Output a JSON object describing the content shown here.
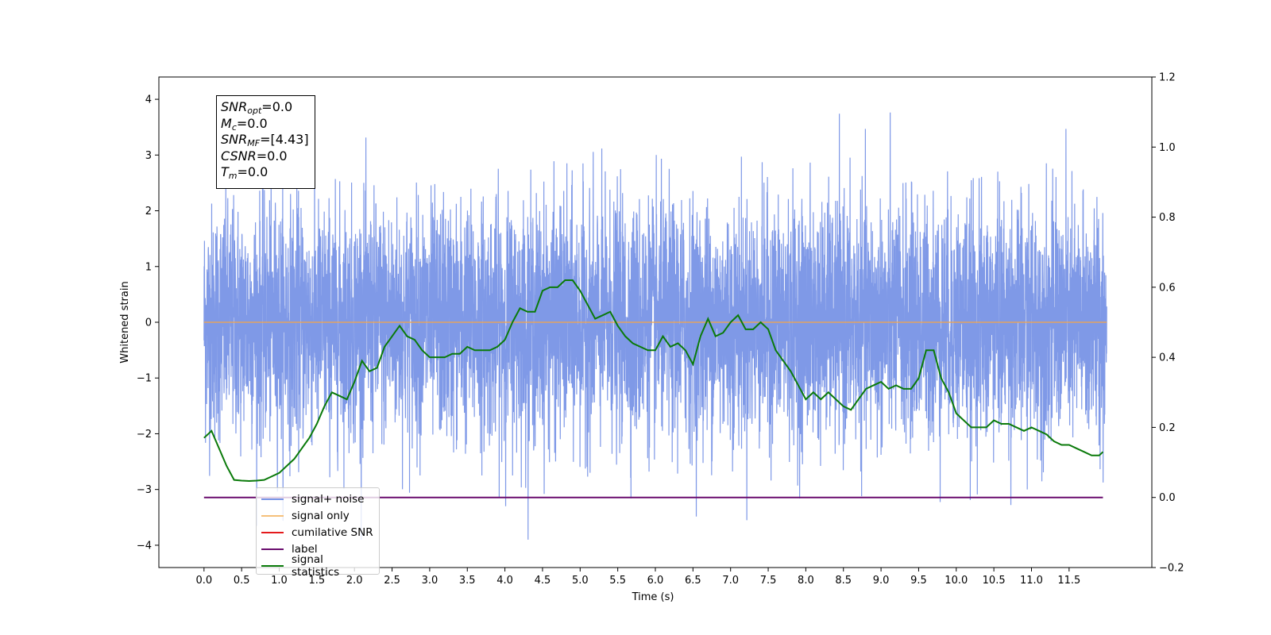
{
  "chart_data": {
    "type": "line",
    "title": "",
    "xlabel": "Time (s)",
    "ylabel": "Whitened strain",
    "ylabel_right": "",
    "xlim": [
      -0.6,
      12.6
    ],
    "ylim": [
      -4.4,
      4.4
    ],
    "ylim_right": [
      -0.2,
      1.2
    ],
    "x_ticks": [
      "0.0",
      "0.5",
      "1.0",
      "1.5",
      "2.0",
      "2.5",
      "3.0",
      "3.5",
      "4.0",
      "4.5",
      "5.0",
      "5.5",
      "6.0",
      "6.5",
      "7.0",
      "7.5",
      "8.0",
      "8.5",
      "9.0",
      "9.5",
      "10.0",
      "10.5",
      "11.0",
      "11.5"
    ],
    "y_ticks": [
      "4",
      "3",
      "2",
      "1",
      "0",
      "−1",
      "−2",
      "−3",
      "−4"
    ],
    "y_ticks_right": [
      "1.2",
      "1.0",
      "0.8",
      "0.6",
      "0.4",
      "0.2",
      "0.0",
      "−0.2"
    ],
    "grid": false,
    "legend_position": "lower-left",
    "stats_box": {
      "snr_opt": "=0.0",
      "mc": "=0.0",
      "snr_mf": "=[4.43]",
      "csnr": "=0.0",
      "tm": "=0.0"
    },
    "series": [
      {
        "name": "signal+ noise",
        "color": "#7893e6",
        "axis": "left",
        "x_range": [
          0.0,
          12.0
        ],
        "mean": 0.0,
        "approx_min": -3.9,
        "approx_max": 4.1,
        "note": "dense noise trace"
      },
      {
        "name": "signal only",
        "color": "#f5a54a",
        "axis": "left",
        "x": [
          0.0,
          12.0
        ],
        "y": [
          0.0,
          0.0
        ]
      },
      {
        "name": "cumilative SNR",
        "color": "#e41a1c",
        "axis": "left",
        "x": [],
        "y": []
      },
      {
        "name": "label",
        "color": "#6a0d6e",
        "axis": "right",
        "x": [
          0.0,
          11.95
        ],
        "y": [
          0.0,
          0.0
        ]
      },
      {
        "name": "signal statistics",
        "color": "#0a7a0a",
        "axis": "right",
        "x": [
          0.0,
          0.1,
          0.2,
          0.3,
          0.4,
          0.5,
          0.6,
          0.7,
          0.8,
          0.9,
          1.0,
          1.1,
          1.2,
          1.3,
          1.4,
          1.5,
          1.6,
          1.7,
          1.8,
          1.9,
          2.0,
          2.1,
          2.2,
          2.3,
          2.4,
          2.5,
          2.6,
          2.7,
          2.8,
          2.9,
          3.0,
          3.1,
          3.2,
          3.3,
          3.4,
          3.5,
          3.6,
          3.7,
          3.8,
          3.9,
          4.0,
          4.1,
          4.2,
          4.3,
          4.4,
          4.5,
          4.6,
          4.7,
          4.8,
          4.9,
          5.0,
          5.1,
          5.2,
          5.3,
          5.4,
          5.5,
          5.6,
          5.7,
          5.8,
          5.9,
          6.0,
          6.1,
          6.2,
          6.3,
          6.4,
          6.5,
          6.6,
          6.7,
          6.8,
          6.9,
          7.0,
          7.1,
          7.2,
          7.3,
          7.4,
          7.5,
          7.6,
          7.7,
          7.8,
          7.9,
          8.0,
          8.1,
          8.2,
          8.3,
          8.4,
          8.5,
          8.6,
          8.7,
          8.8,
          8.9,
          9.0,
          9.1,
          9.2,
          9.3,
          9.4,
          9.5,
          9.6,
          9.7,
          9.8,
          9.9,
          10.0,
          10.1,
          10.2,
          10.3,
          10.4,
          10.5,
          10.6,
          10.7,
          10.8,
          10.9,
          11.0,
          11.1,
          11.2,
          11.3,
          11.4,
          11.5,
          11.6,
          11.7,
          11.8,
          11.9,
          11.95
        ],
        "y": [
          0.17,
          0.19,
          0.14,
          0.09,
          0.05,
          0.048,
          0.047,
          0.048,
          0.05,
          0.06,
          0.07,
          0.09,
          0.11,
          0.14,
          0.17,
          0.21,
          0.26,
          0.3,
          0.29,
          0.28,
          0.33,
          0.39,
          0.36,
          0.37,
          0.43,
          0.46,
          0.49,
          0.46,
          0.45,
          0.42,
          0.4,
          0.4,
          0.4,
          0.41,
          0.41,
          0.43,
          0.42,
          0.42,
          0.42,
          0.43,
          0.45,
          0.5,
          0.54,
          0.53,
          0.53,
          0.59,
          0.6,
          0.6,
          0.62,
          0.62,
          0.59,
          0.55,
          0.51,
          0.52,
          0.53,
          0.49,
          0.46,
          0.44,
          0.43,
          0.42,
          0.42,
          0.46,
          0.43,
          0.44,
          0.42,
          0.38,
          0.46,
          0.51,
          0.46,
          0.47,
          0.5,
          0.52,
          0.48,
          0.48,
          0.5,
          0.48,
          0.42,
          0.39,
          0.36,
          0.32,
          0.28,
          0.3,
          0.28,
          0.3,
          0.28,
          0.26,
          0.25,
          0.28,
          0.31,
          0.32,
          0.33,
          0.31,
          0.32,
          0.31,
          0.31,
          0.34,
          0.42,
          0.42,
          0.34,
          0.3,
          0.24,
          0.22,
          0.2,
          0.2,
          0.2,
          0.22,
          0.21,
          0.21,
          0.2,
          0.19,
          0.2,
          0.19,
          0.18,
          0.16,
          0.15,
          0.15,
          0.14,
          0.13,
          0.12,
          0.12,
          0.13
        ]
      }
    ]
  }
}
